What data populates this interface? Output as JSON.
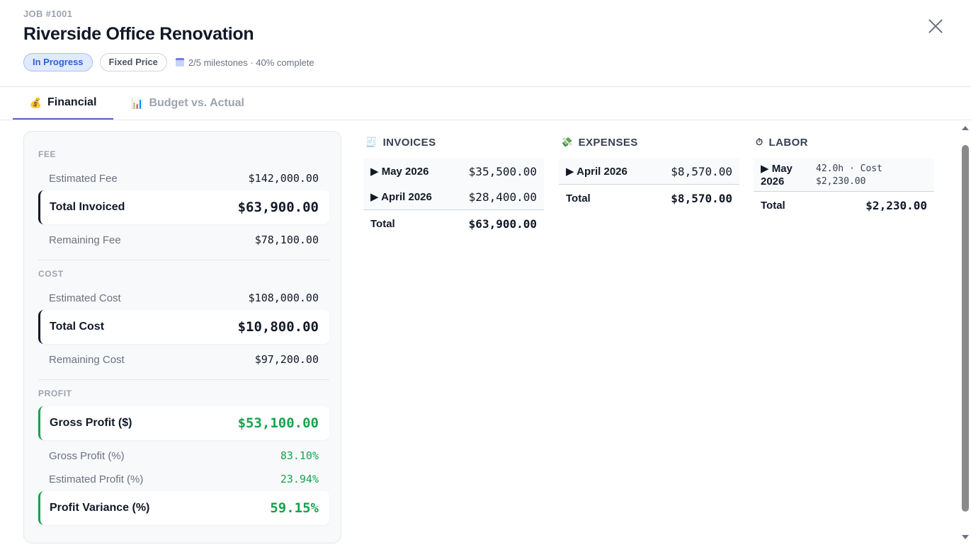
{
  "header": {
    "job_number": "JOB #1001",
    "title": "Riverside Office Renovation",
    "status_badge": "In Progress",
    "contract_badge": "Fixed Price",
    "milestones_text": "2/5 milestones · 40% complete",
    "icons": {
      "milestones": "calendar-icon",
      "close": "close-icon"
    }
  },
  "tabs": [
    {
      "label": "Financial",
      "icon": "💰",
      "active": true
    },
    {
      "label": "Budget vs. Actual",
      "icon": "📊",
      "active": false
    }
  ],
  "financial": {
    "fee": {
      "label": "FEE",
      "estimated_fee": {
        "label": "Estimated Fee",
        "value": "$142,000.00"
      },
      "total_invoiced": {
        "label": "Total Invoiced",
        "value": "$63,900.00"
      },
      "remaining_fee": {
        "label": "Remaining Fee",
        "value": "$78,100.00"
      }
    },
    "cost": {
      "label": "COST",
      "estimated_cost": {
        "label": "Estimated Cost",
        "value": "$108,000.00"
      },
      "total_cost": {
        "label": "Total Cost",
        "value": "$10,800.00"
      },
      "remaining_cost": {
        "label": "Remaining Cost",
        "value": "$97,200.00"
      }
    },
    "profit": {
      "label": "PROFIT",
      "gross_profit_amt": {
        "label": "Gross Profit ($)",
        "value": "$53,100.00"
      },
      "gross_profit_pct": {
        "label": "Gross Profit (%)",
        "value": "83.10%"
      },
      "estimated_profit_pct": {
        "label": "Estimated Profit (%)",
        "value": "23.94%"
      },
      "profit_variance": {
        "label": "Profit Variance (%)",
        "value": "59.15%"
      }
    }
  },
  "invoices": {
    "title": "INVOICES",
    "icon": "🧾",
    "rows": [
      {
        "month": "▶ May 2026",
        "amount": "$35,500.00"
      },
      {
        "month": "▶ April 2026",
        "amount": "$28,400.00"
      }
    ],
    "total_label": "Total",
    "total_value": "$63,900.00"
  },
  "expenses": {
    "title": "EXPENSES",
    "icon": "💸",
    "rows": [
      {
        "month": "▶ April 2026",
        "amount": "$8,570.00"
      }
    ],
    "total_label": "Total",
    "total_value": "$8,570.00"
  },
  "labor": {
    "title": "LABOR",
    "icon": "⏱",
    "rows": [
      {
        "month_line1": "▶ May",
        "month_line2": "2026",
        "detail_line1": "42.0h · Cost",
        "detail_line2": "$2,230.00"
      }
    ],
    "total_label": "Total",
    "total_value": "$2,230.00"
  },
  "colors": {
    "accent": "#4f63c9",
    "status_badge_bg": "#e0eaff",
    "status_badge_text": "#2f5fd6",
    "profit_green": "#16a34a"
  }
}
